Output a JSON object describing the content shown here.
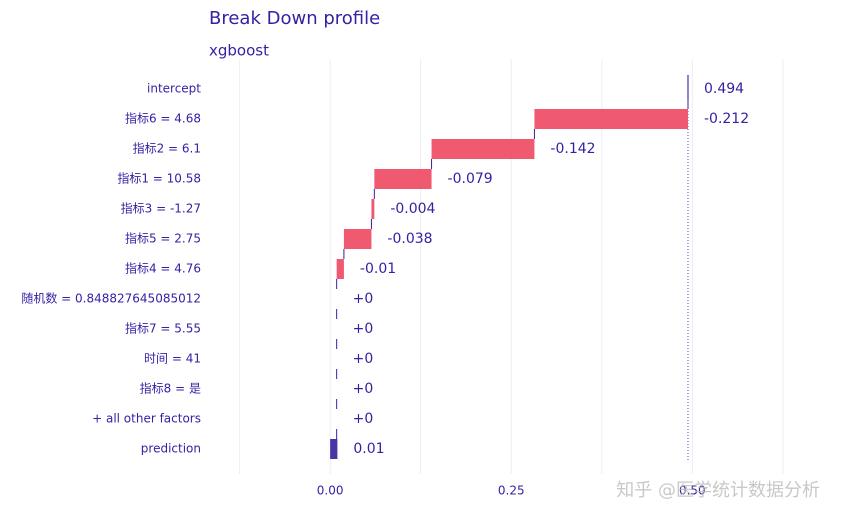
{
  "chart_data": {
    "type": "waterfall",
    "title": "Break Down profile",
    "subtitle": "xgboost",
    "categories": [
      "intercept",
      "指标6 = 4.68",
      "指标2 = 6.1",
      "指标1 = 10.58",
      "指标3 = -1.27",
      "指标5 = 2.75",
      "指标4 = 4.76",
      "随机数 = 0.848827645085012",
      "指标7 = 5.55",
      "时间 = 41",
      "指标8 = 是",
      "+ all other factors",
      "prediction"
    ],
    "values": [
      0.494,
      -0.212,
      -0.142,
      -0.079,
      -0.004,
      -0.038,
      -0.01,
      0,
      0,
      0,
      0,
      0,
      0.01
    ],
    "value_labels": [
      "0.494",
      "-0.212",
      "-0.142",
      "-0.079",
      "-0.004",
      "-0.038",
      "-0.01",
      "+0",
      "+0",
      "+0",
      "+0",
      "+0",
      "0.01"
    ],
    "negative_color": "#f05a71",
    "positive_color": "#8bdcbe",
    "prediction_color": "#4b35a6",
    "xlim": [
      -0.17,
      0.65
    ],
    "xticks": [
      {
        "value": 0,
        "label": "0.00"
      },
      {
        "value": 0.25,
        "label": "0.25"
      },
      {
        "value": 0.5,
        "label": "0.50"
      }
    ],
    "minor_xticks": [
      -0.125,
      0.125,
      0.375,
      0.625
    ],
    "grid": true,
    "watermark": "知乎 @医学统计数据分析"
  }
}
